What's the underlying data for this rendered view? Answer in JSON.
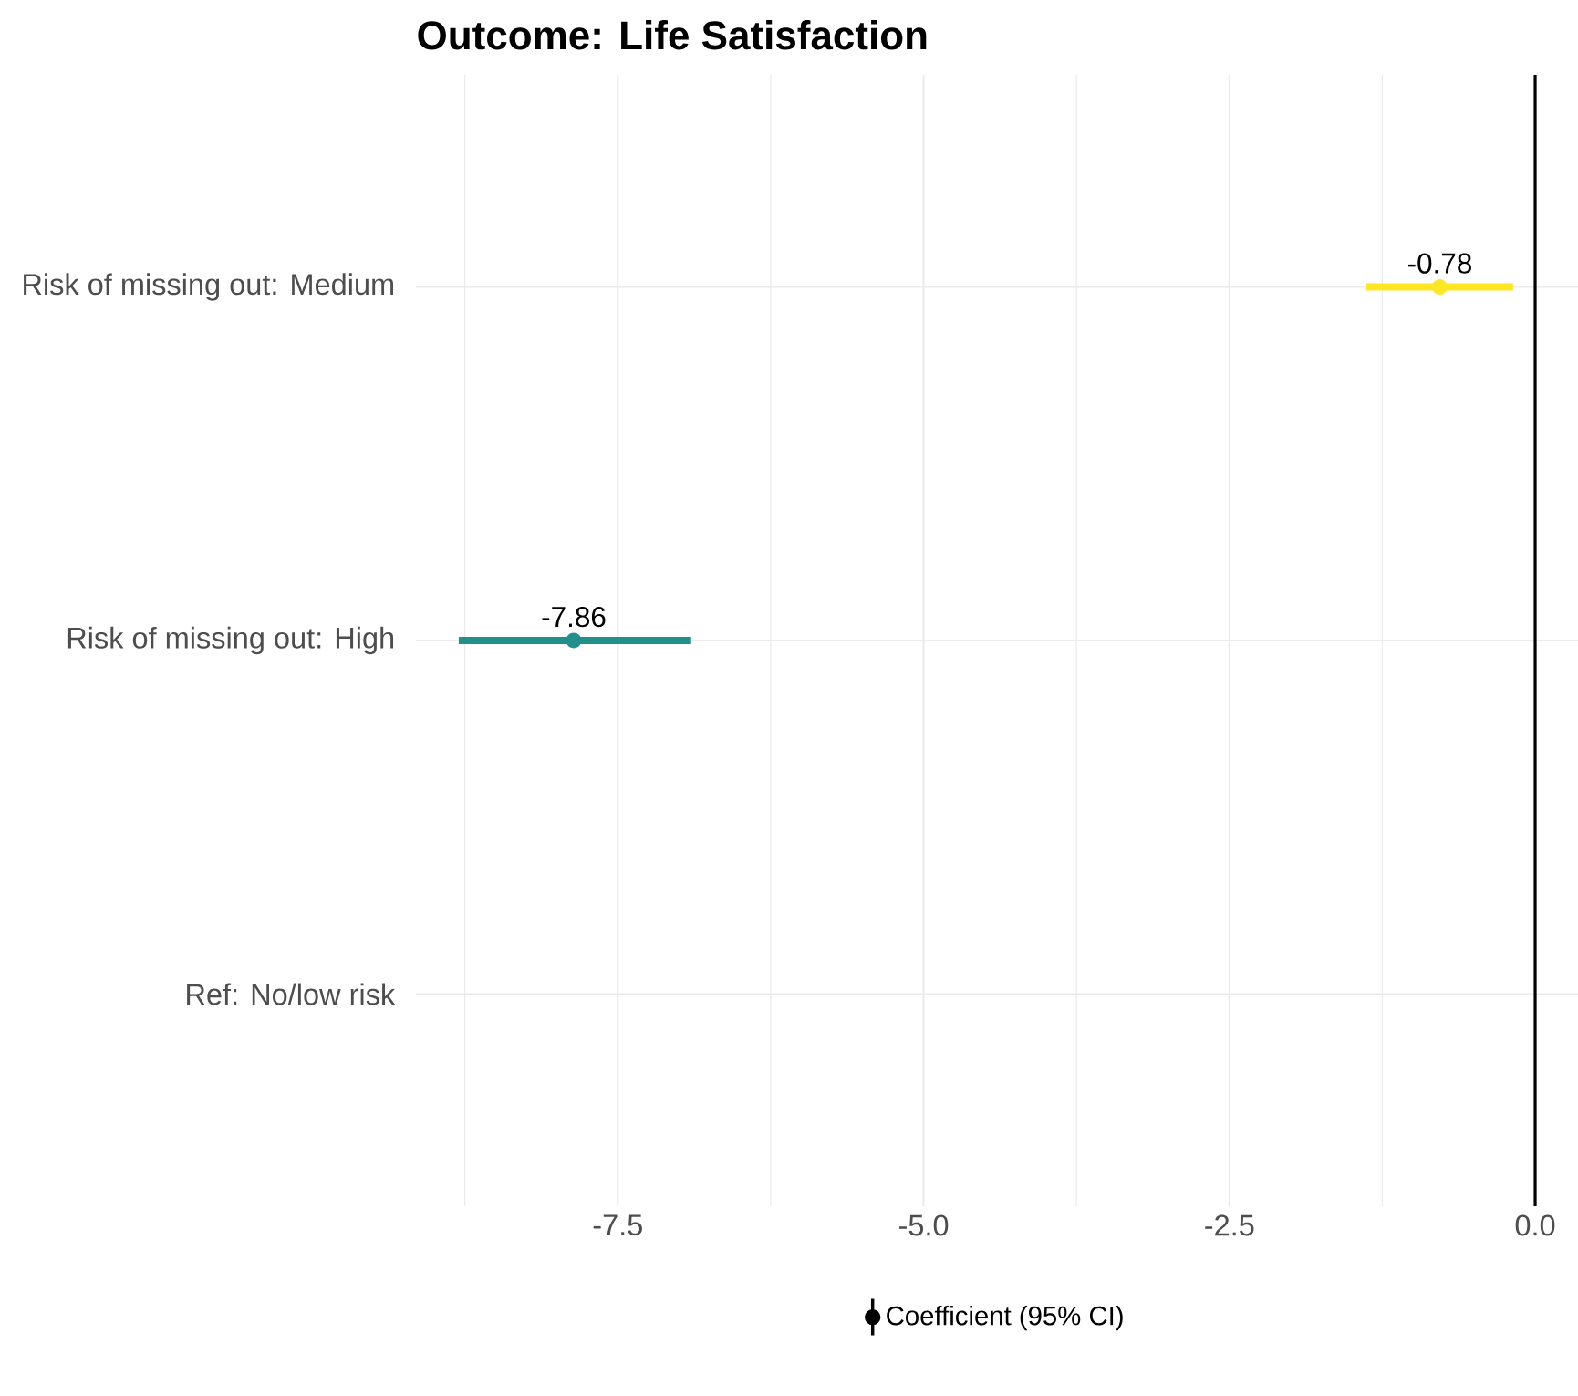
{
  "chart_data": {
    "type": "scatter",
    "orientation": "horizontal",
    "title": "Outcome: Life Satisfaction",
    "categories": [
      "Risk of missing out: Medium",
      "Risk of missing out: High",
      "Ref: No/low risk"
    ],
    "series": [
      {
        "name": "Coefficient (95% CI)",
        "color": "#000000",
        "colors": [
          "#fde725",
          "#21908c",
          null
        ],
        "values": [
          -0.78,
          -7.86,
          null
        ],
        "errors": [
          [
            -1.38,
            -0.18
          ],
          [
            -8.8,
            -6.9
          ],
          null
        ]
      }
    ],
    "xlim": [
      -9.15,
      0.35
    ],
    "xticks": [
      -7.5,
      {
        "value": -5,
        "label": "-5.0"
      },
      {
        "value": -2.5,
        "label": "-2.5"
      },
      {
        "value": 0,
        "label": "0.0"
      }
    ],
    "ref_lines": [
      {
        "axis": "x",
        "value": 0,
        "color": "#000000"
      }
    ],
    "data_labels": true,
    "grid": true,
    "legend": "bottom",
    "marker": "circle"
  }
}
